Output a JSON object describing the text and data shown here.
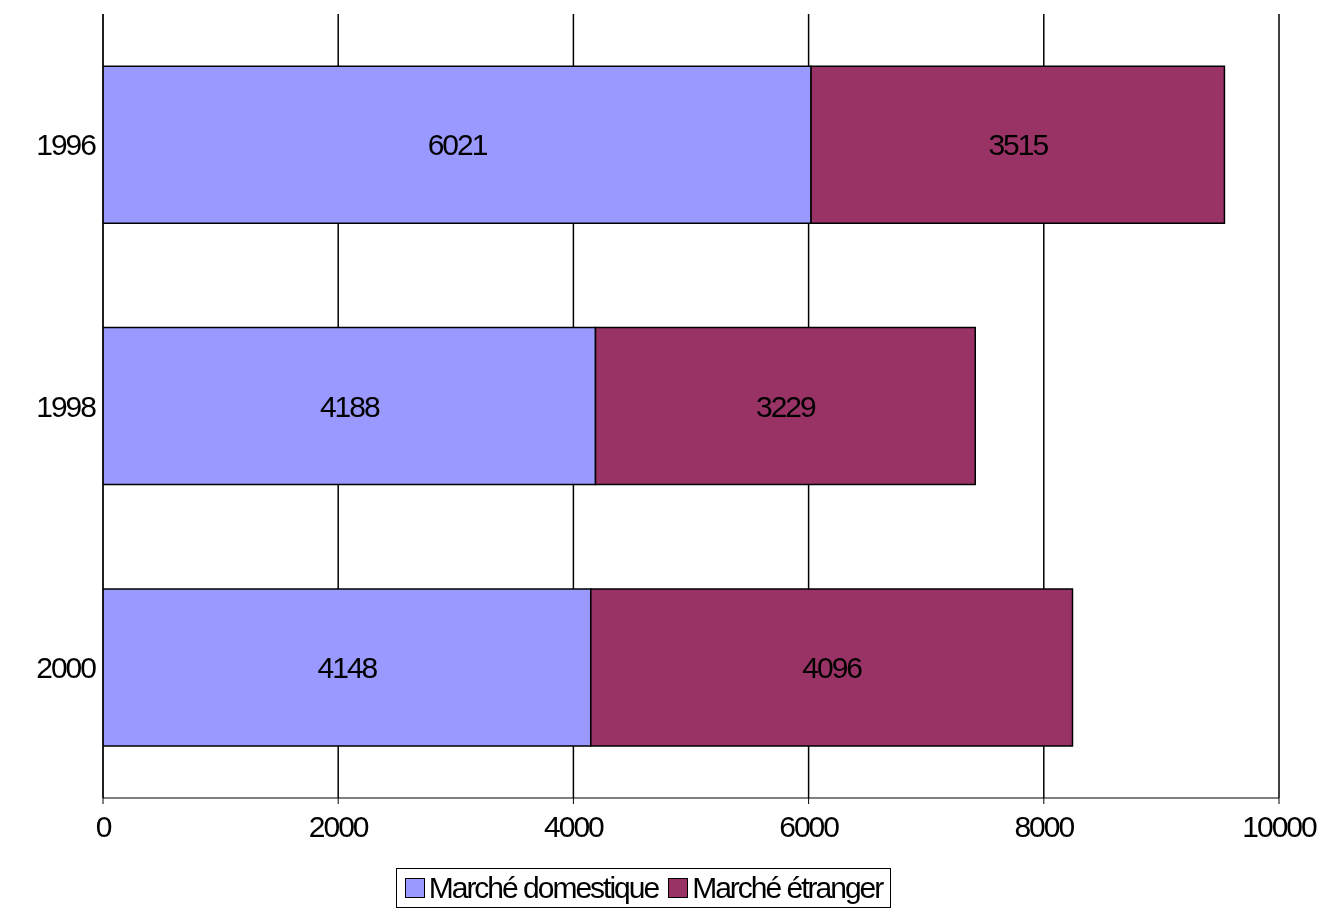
{
  "chart_data": {
    "type": "bar",
    "orientation": "horizontal",
    "stacked": true,
    "categories": [
      "1996",
      "1998",
      "2000"
    ],
    "series": [
      {
        "name": "Marché domestique",
        "color": "#9999ff",
        "values": [
          6021,
          4188,
          4148
        ]
      },
      {
        "name": "Marché étranger",
        "color": "#993366",
        "values": [
          3515,
          3229,
          4096
        ]
      }
    ],
    "xlim": [
      0,
      10000
    ],
    "xticks": [
      0,
      2000,
      4000,
      6000,
      8000,
      10000
    ],
    "grid": "x",
    "legend": "bottom",
    "data_labels": true
  }
}
